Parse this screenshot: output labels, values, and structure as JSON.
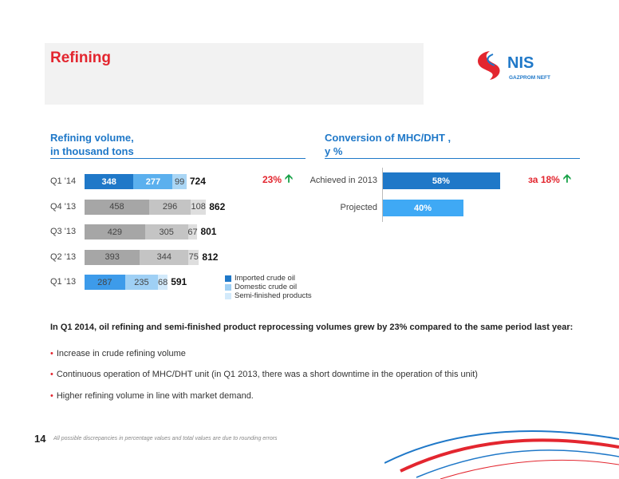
{
  "header": {
    "title": "Refining"
  },
  "logo": {
    "text": "NIS",
    "subtext": "GAZPROM NEFT",
    "color_red": "#e3262f",
    "color_blue": "#1f78c8"
  },
  "left_section": {
    "title_line1": "Refining volume,",
    "title_line2": "in thousand tons"
  },
  "right_section": {
    "title_line1": "Conversion of MHC/DHT ,",
    "title_line2": "y %"
  },
  "chart_data": [
    {
      "type": "bar",
      "orientation": "horizontal",
      "stacked": true,
      "categories": [
        "Q1 '14",
        "Q4 '13",
        "Q3 '13",
        "Q2 '13",
        "Q1 '13"
      ],
      "series": [
        {
          "name": "Imported crude oil",
          "values": [
            348,
            null,
            null,
            null,
            287
          ]
        },
        {
          "name": "Domestic crude oil",
          "values": [
            277,
            458,
            429,
            393,
            235
          ]
        },
        {
          "name": "Semi-finished products",
          "values": [
            99,
            296,
            305,
            344,
            68
          ]
        },
        {
          "name": "",
          "values": [
            null,
            108,
            67,
            75,
            null
          ]
        }
      ],
      "segment_labels": [
        [
          "348",
          "277",
          "99"
        ],
        [
          "458",
          "296",
          "108"
        ],
        [
          "429",
          "305",
          "67"
        ],
        [
          "393",
          "344",
          "75"
        ],
        [
          "287",
          "235",
          "68"
        ]
      ],
      "totals": [
        "724",
        "862",
        "801",
        "812",
        "591"
      ],
      "legend": [
        "Imported crude oil",
        "Domestic crude oil",
        "Semi-finished products"
      ],
      "colors": {
        "q1_14": [
          "#1f78c8",
          "#5bb0ee",
          "#aad6f5"
        ],
        "q1_13": [
          "#3d9bea",
          "#9fd0f5",
          "#d3eafb"
        ],
        "gray": [
          "#a6a6a6",
          "#c4c4c4",
          "#dedede"
        ]
      },
      "growth_label": "23%"
    },
    {
      "type": "bar",
      "orientation": "horizontal",
      "categories": [
        "Achieved in 2013",
        "Projected"
      ],
      "values": [
        58,
        40
      ],
      "labels": [
        "58%",
        "40%"
      ],
      "colors": [
        "#1f78c8",
        "#3fa9f5"
      ],
      "growth_label": "за 18%"
    }
  ],
  "summary": "In Q1 2014, oil refining and semi-finished product reprocessing volumes grew by 23% compared to the same period last year:",
  "bullets": [
    "Increase in crude refining volume",
    "Continuous operation of MHC/DHT unit (in Q1 2013, there was a short downtime in the operation of this unit)",
    "Higher refining volume in line with market demand."
  ],
  "footer": {
    "page_number": "14",
    "note": "All possible discrepancies in percentage values and total values are due to rounding errors"
  }
}
